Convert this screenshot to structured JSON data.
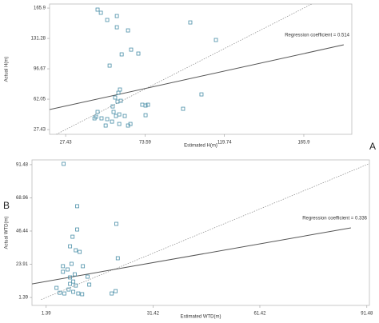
{
  "chart_data": [
    {
      "type": "scatter",
      "panel_label": "A",
      "xlabel": "Estimated H(m)",
      "ylabel": "Actual H(m)",
      "annotation": "Regression coefficient = 0.514",
      "color": "#4a8fa8",
      "xlim": [
        18.1,
        193.8
      ],
      "ylim": [
        22.0,
        170.5
      ],
      "xticks": [
        27.43,
        73.59,
        119.74,
        165.9
      ],
      "yticks": [
        27.43,
        62.05,
        96.67,
        131.28,
        165.9
      ],
      "x": [
        46.0,
        47.9,
        51.6,
        57.2,
        63.7,
        57.2,
        65.5,
        53.0,
        60.0,
        69.7,
        99.9,
        114.8,
        106.4,
        95.7,
        59.0,
        58.1,
        56.2,
        57.6,
        59.5,
        54.8,
        55.3,
        56.7,
        58.6,
        46.0,
        44.2,
        48.3,
        51.6,
        54.4,
        61.8,
        63.7,
        65.1,
        72.0,
        73.9,
        75.3,
        73.9,
        58.6,
        50.7,
        45.1
      ],
      "y": [
        164.1,
        160.5,
        152.3,
        156.8,
        140.4,
        144.0,
        118.5,
        100.3,
        113.1,
        114.0,
        149.5,
        129.5,
        67.5,
        51.1,
        73.0,
        69.3,
        63.9,
        59.3,
        60.2,
        53.8,
        47.5,
        42.9,
        44.7,
        47.5,
        40.2,
        40.2,
        39.3,
        36.5,
        42.9,
        32.0,
        33.8,
        55.7,
        54.8,
        55.7,
        43.8,
        33.8,
        32.0,
        42.0
      ],
      "regression_line": {
        "x": [
          18.1,
          189.1
        ],
        "y": [
          50.2,
          124.0
        ]
      },
      "identity_line": {
        "x": [
          22.0,
          170.5
        ],
        "y": [
          22.0,
          170.5
        ]
      }
    },
    {
      "type": "scatter",
      "panel_label": "B",
      "xlabel": "Estimated WTD(m)",
      "ylabel": "Actual WTD(m)",
      "annotation": "Regression coefficient = 0.336",
      "color": "#4a8fa8",
      "xlim": [
        -2.6,
        92.2
      ],
      "ylim": [
        -4.0,
        94.7
      ],
      "xticks": [
        1.39,
        31.42,
        61.42,
        91.48
      ],
      "yticks": [
        1.39,
        23.91,
        46.44,
        68.96,
        91.48
      ],
      "x": [
        6.3,
        10.1,
        10.1,
        8.8,
        8.1,
        9.7,
        10.8,
        6.1,
        6.1,
        21.1,
        21.5,
        8.5,
        7.4,
        8.1,
        9.0,
        9.7,
        8.1,
        7.7,
        9.0,
        10.4,
        11.5,
        4.3,
        5.2,
        6.5,
        13.0,
        13.5,
        19.8,
        20.9,
        11.7,
        9.4
      ],
      "y": [
        92.0,
        63.3,
        47.5,
        42.6,
        36.1,
        33.4,
        32.3,
        22.6,
        18.8,
        51.3,
        28.0,
        24.2,
        20.4,
        15.0,
        12.2,
        9.5,
        10.6,
        6.8,
        5.2,
        4.1,
        3.6,
        7.9,
        4.6,
        4.1,
        15.5,
        10.1,
        4.1,
        5.7,
        22.6,
        17.1
      ],
      "regression_line": {
        "x": [
          -2.6,
          87.0
        ],
        "y": [
          10.6,
          48.6
        ]
      },
      "identity_line": {
        "x": [
          0.0,
          92.2
        ],
        "y": [
          0.0,
          92.2
        ]
      }
    }
  ]
}
